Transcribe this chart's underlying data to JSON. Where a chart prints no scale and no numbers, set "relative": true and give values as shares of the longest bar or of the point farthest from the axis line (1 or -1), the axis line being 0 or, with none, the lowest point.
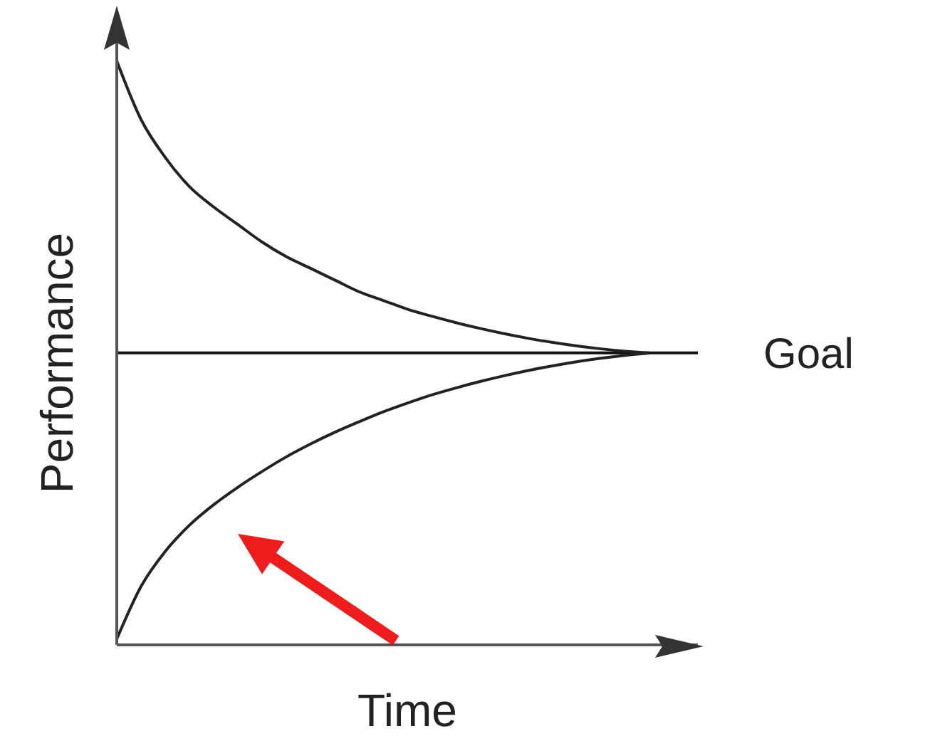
{
  "chart_data": {
    "type": "line",
    "relative": true,
    "xlabel": "Time",
    "ylabel": "Performance",
    "marker": "none",
    "categories": [
      null,
      null,
      null,
      null,
      null,
      null,
      null,
      null,
      null,
      null,
      null,
      null,
      null,
      null,
      null,
      null,
      null,
      null,
      null,
      null,
      null,
      null,
      null,
      null,
      null
    ],
    "series": [
      {
        "color": "#222222",
        "values": [
          1.0,
          0.9,
          0.835,
          0.785,
          0.75,
          0.72,
          0.69,
          0.665,
          0.645,
          0.625,
          0.605,
          0.59,
          0.575,
          0.563,
          0.552,
          0.542,
          0.533,
          0.525,
          0.518,
          0.512,
          0.507,
          0.503,
          0.5,
          null,
          null
        ]
      },
      {
        "color": "#222222",
        "values": [
          0.01,
          0.1,
          0.16,
          0.205,
          0.24,
          0.27,
          0.297,
          0.322,
          0.344,
          0.364,
          0.382,
          0.399,
          0.414,
          0.428,
          0.44,
          0.451,
          0.461,
          0.47,
          0.478,
          0.485,
          0.491,
          0.496,
          0.5,
          null,
          null
        ]
      }
    ],
    "ref_lines": [
      {
        "axis": "y",
        "value": 0.5,
        "label": "Goal",
        "color": "#111111"
      }
    ]
  }
}
